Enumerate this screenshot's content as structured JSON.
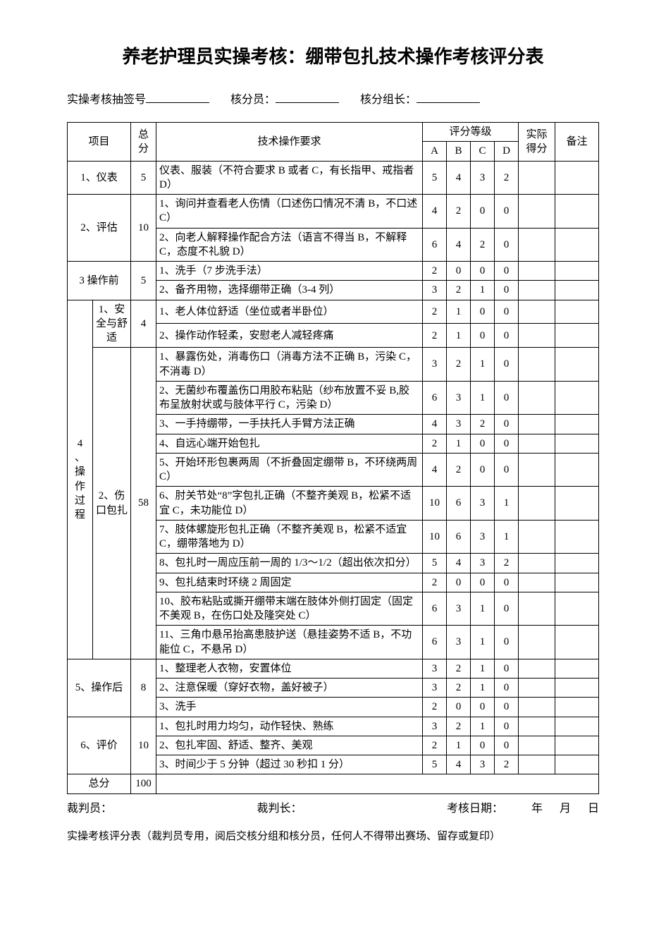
{
  "title": "养老护理员实操考核：绷带包扎技术操作考核评分表",
  "header": {
    "exam_no_label": "实操考核抽签号",
    "scorer_label": "核分员：",
    "scorer_leader_label": "核分组长："
  },
  "thead": {
    "project": "项目",
    "total": "总分",
    "requirement": "技术操作要求",
    "grade": "评分等级",
    "A": "A",
    "B": "B",
    "C": "C",
    "D": "D",
    "actual": "实际得分",
    "remark": "备注"
  },
  "sections": [
    {
      "project": "1、仪表",
      "total": "5",
      "rows": [
        {
          "req": "仪表、服装（不符合要求 B 或者 C，有长指甲、戒指者 D）",
          "A": "5",
          "B": "4",
          "C": "3",
          "D": "2"
        }
      ]
    },
    {
      "project": "2、评估",
      "total": "10",
      "rows": [
        {
          "req": "1、询问并查看老人伤情（口述伤口情况不清 B，不口述 C）",
          "A": "4",
          "B": "2",
          "C": "0",
          "D": "0"
        },
        {
          "req": "2、向老人解释操作配合方法（语言不得当 B，不解释 C，态度不礼貌 D）",
          "A": "6",
          "B": "4",
          "C": "2",
          "D": "0"
        }
      ]
    },
    {
      "project": "3 操作前",
      "total": "5",
      "rows": [
        {
          "req": "1、洗手（7 步洗手法）",
          "A": "2",
          "B": "0",
          "C": "0",
          "D": "0"
        },
        {
          "req": "2、备齐用物，选择绷带正确（3-4 列）",
          "A": "3",
          "B": "2",
          "C": "1",
          "D": "0"
        }
      ]
    }
  ],
  "op_section": {
    "left": "4、操作过程",
    "sub1": {
      "label": "1、安全与舒适",
      "total": "4",
      "rows": [
        {
          "req": "1、老人体位舒适（坐位或者半卧位）",
          "A": "2",
          "B": "1",
          "C": "0",
          "D": "0"
        },
        {
          "req": "2、操作动作轻柔，安慰老人减轻疼痛",
          "A": "2",
          "B": "1",
          "C": "0",
          "D": "0"
        }
      ]
    },
    "sub2": {
      "label": "2、伤口包扎",
      "total": "58",
      "rows": [
        {
          "req": "1、暴露伤处，消毒伤口（消毒方法不正确 B，污染 C，不消毒 D）",
          "A": "3",
          "B": "2",
          "C": "1",
          "D": "0"
        },
        {
          "req": "2、无菌纱布覆盖伤口用胶布粘贴（纱布放置不妥 B,胶布呈放射状或与肢体平行 C，污染 D）",
          "A": "6",
          "B": "3",
          "C": "1",
          "D": "0"
        },
        {
          "req": "3、一手持绷带，一手扶托人手臂方法正确",
          "A": "4",
          "B": "3",
          "C": "2",
          "D": "0"
        },
        {
          "req": "4、自远心端开始包扎",
          "A": "2",
          "B": "1",
          "C": "0",
          "D": "0"
        },
        {
          "req": "5、开始环形包裹两周（不折叠固定绷带 B，不环绕两周 C）",
          "A": "4",
          "B": "2",
          "C": "0",
          "D": "0"
        },
        {
          "req": "6、肘关节处“8”字包扎正确（不整齐美观 B，松紧不适宜 C，未功能位 D）",
          "A": "10",
          "B": "6",
          "C": "3",
          "D": "1"
        },
        {
          "req": "7、肢体螺旋形包扎正确（不整齐美观 B，松紧不适宜 C，绷带落地为 D）",
          "A": "10",
          "B": "6",
          "C": "3",
          "D": "1"
        },
        {
          "req": "8、包扎时一周应压前一周的 1/3～1/2（超出依次扣分）",
          "A": "5",
          "B": "4",
          "C": "3",
          "D": "2"
        },
        {
          "req": "9、包扎结束时环绕 2 周固定",
          "A": "2",
          "B": "0",
          "C": "0",
          "D": "0"
        },
        {
          "req": "10、胶布粘贴或撕开绷带末端在肢体外侧打固定（固定不美观 B，在伤口处及隆突处 C）",
          "A": "6",
          "B": "3",
          "C": "1",
          "D": "0"
        },
        {
          "req": "11、三角巾悬吊抬高患肢护送（悬挂姿势不适 B，不功能位 C，不悬吊 D）",
          "A": "6",
          "B": "3",
          "C": "1",
          "D": "0"
        }
      ]
    }
  },
  "sections_after": [
    {
      "project": "5、操作后",
      "total": "8",
      "rows": [
        {
          "req": "1、整理老人衣物，安置体位",
          "A": "3",
          "B": "2",
          "C": "1",
          "D": "0"
        },
        {
          "req": "2、注意保暖（穿好衣物，盖好被子）",
          "A": "3",
          "B": "2",
          "C": "1",
          "D": "0"
        },
        {
          "req": "3、洗手",
          "A": "2",
          "B": "0",
          "C": "0",
          "D": "0"
        }
      ]
    },
    {
      "project": "6、评价",
      "total": "10",
      "rows": [
        {
          "req": "1、包扎时用力均匀，动作轻快、熟练",
          "A": "3",
          "B": "2",
          "C": "1",
          "D": "0"
        },
        {
          "req": "2、包扎牢固、舒适、整齐、美观",
          "A": "2",
          "B": "1",
          "C": "0",
          "D": "0"
        },
        {
          "req": "3、时间少于 5 分钟（超过 30 秒扣 1 分）",
          "A": "5",
          "B": "4",
          "C": "3",
          "D": "2"
        }
      ]
    }
  ],
  "total_row": {
    "label": "总分",
    "value": "100"
  },
  "footer": {
    "judge": "裁判员：",
    "judge_leader": "裁判长：",
    "date_label": "考核日期：",
    "y": "年",
    "m": "月",
    "d": "日"
  },
  "note": "实操考核评分表（裁判员专用，阅后交核分组和核分员，任何人不得带出赛场、留存或复印）"
}
